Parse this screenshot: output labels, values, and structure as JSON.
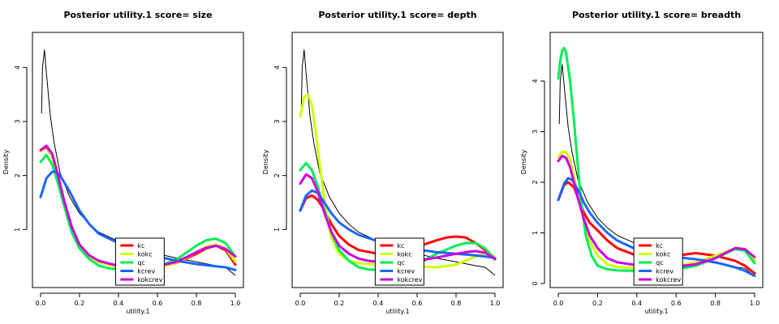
{
  "chart_data": [
    {
      "type": "line",
      "title": "Posterior utility.1  score= size",
      "xlabel": "utility.1",
      "ylabel": "Density",
      "xlim": [
        0,
        1
      ],
      "ylim": [
        0,
        4.5
      ],
      "xticks": [
        "0.0",
        "0.2",
        "0.4",
        "0.6",
        "0.8",
        "1.0"
      ],
      "yticks": [
        "1",
        "2",
        "3",
        "4"
      ],
      "legend_position": "bottom-center",
      "reference": {
        "color": "#000000",
        "x": [
          0.005,
          0.01,
          0.02,
          0.03,
          0.05,
          0.07,
          0.1,
          0.15,
          0.2,
          0.25,
          0.3,
          0.4,
          0.5,
          0.6,
          0.7,
          0.8,
          0.9,
          0.95,
          1.0
        ],
        "y": [
          3.15,
          4.0,
          4.33,
          3.9,
          3.1,
          2.6,
          2.05,
          1.6,
          1.3,
          1.1,
          0.95,
          0.78,
          0.65,
          0.55,
          0.47,
          0.4,
          0.33,
          0.3,
          0.15
        ]
      },
      "series": [
        {
          "name": "kc",
          "color": "#ff0000",
          "x": [
            0,
            0.03,
            0.06,
            0.09,
            0.12,
            0.16,
            0.2,
            0.25,
            0.3,
            0.35,
            0.4,
            0.5,
            0.6,
            0.7,
            0.8,
            0.85,
            0.9,
            0.95,
            1.0
          ],
          "y": [
            2.45,
            2.53,
            2.35,
            1.95,
            1.5,
            1.0,
            0.7,
            0.5,
            0.4,
            0.35,
            0.32,
            0.28,
            0.3,
            0.38,
            0.55,
            0.65,
            0.7,
            0.62,
            0.35
          ]
        },
        {
          "name": "kokc",
          "color": "#ccff00",
          "x": [
            0,
            0.03,
            0.06,
            0.09,
            0.12,
            0.16,
            0.2,
            0.25,
            0.3,
            0.35,
            0.4,
            0.5,
            0.6,
            0.7,
            0.8,
            0.85,
            0.9,
            0.95,
            1.0
          ],
          "y": [
            2.45,
            2.55,
            2.35,
            1.95,
            1.5,
            1.0,
            0.7,
            0.5,
            0.4,
            0.35,
            0.32,
            0.28,
            0.3,
            0.38,
            0.58,
            0.68,
            0.72,
            0.65,
            0.4
          ]
        },
        {
          "name": "qc",
          "color": "#00ee55",
          "x": [
            0,
            0.03,
            0.06,
            0.09,
            0.12,
            0.16,
            0.2,
            0.25,
            0.3,
            0.35,
            0.4,
            0.5,
            0.6,
            0.7,
            0.8,
            0.85,
            0.9,
            0.95,
            1.0
          ],
          "y": [
            2.25,
            2.38,
            2.2,
            1.85,
            1.45,
            0.95,
            0.65,
            0.45,
            0.33,
            0.28,
            0.26,
            0.25,
            0.3,
            0.45,
            0.7,
            0.8,
            0.83,
            0.75,
            0.5
          ]
        },
        {
          "name": "kcrev",
          "color": "#1a66ff",
          "x": [
            0,
            0.03,
            0.06,
            0.08,
            0.1,
            0.15,
            0.2,
            0.25,
            0.3,
            0.4,
            0.5,
            0.6,
            0.7,
            0.8,
            0.9,
            0.95,
            1.0
          ],
          "y": [
            1.6,
            1.95,
            2.07,
            2.07,
            2.0,
            1.7,
            1.35,
            1.1,
            0.92,
            0.75,
            0.62,
            0.5,
            0.42,
            0.36,
            0.32,
            0.3,
            0.25
          ]
        },
        {
          "name": "kokcrev",
          "color": "#cc00dd",
          "x": [
            0,
            0.03,
            0.06,
            0.09,
            0.12,
            0.16,
            0.2,
            0.25,
            0.3,
            0.35,
            0.4,
            0.5,
            0.6,
            0.7,
            0.8,
            0.85,
            0.9,
            0.95,
            1.0
          ],
          "y": [
            2.47,
            2.55,
            2.4,
            2.0,
            1.55,
            1.05,
            0.72,
            0.52,
            0.42,
            0.37,
            0.33,
            0.3,
            0.32,
            0.4,
            0.58,
            0.66,
            0.7,
            0.64,
            0.5
          ]
        }
      ],
      "legend": [
        "kc",
        "kokc",
        "qc",
        "kcrev",
        "kokcrev"
      ]
    },
    {
      "type": "line",
      "title": "Posterior utility.1  score= depth",
      "xlabel": "utility.1",
      "ylabel": "Density",
      "xlim": [
        0,
        1
      ],
      "ylim": [
        0,
        4.5
      ],
      "xticks": [
        "0.0",
        "0.2",
        "0.4",
        "0.6",
        "0.8",
        "1.0"
      ],
      "yticks": [
        "1",
        "2",
        "3",
        "4"
      ],
      "legend_position": "bottom-center",
      "reference": {
        "color": "#000000",
        "x": [
          0.005,
          0.01,
          0.02,
          0.03,
          0.05,
          0.07,
          0.1,
          0.15,
          0.2,
          0.25,
          0.3,
          0.4,
          0.5,
          0.6,
          0.7,
          0.8,
          0.9,
          0.95,
          1.0
        ],
        "y": [
          3.15,
          4.0,
          4.33,
          3.9,
          3.1,
          2.6,
          2.05,
          1.6,
          1.3,
          1.1,
          0.95,
          0.78,
          0.65,
          0.55,
          0.47,
          0.4,
          0.33,
          0.3,
          0.15
        ]
      },
      "series": [
        {
          "name": "kc",
          "color": "#ff0000",
          "x": [
            0,
            0.03,
            0.06,
            0.09,
            0.12,
            0.16,
            0.2,
            0.25,
            0.3,
            0.4,
            0.5,
            0.6,
            0.7,
            0.75,
            0.8,
            0.85,
            0.9,
            0.95,
            1.0
          ],
          "y": [
            1.35,
            1.58,
            1.63,
            1.55,
            1.38,
            1.1,
            0.88,
            0.72,
            0.62,
            0.55,
            0.58,
            0.68,
            0.8,
            0.85,
            0.87,
            0.85,
            0.75,
            0.62,
            0.45
          ]
        },
        {
          "name": "kokc",
          "color": "#ccff00",
          "x": [
            0,
            0.02,
            0.04,
            0.06,
            0.08,
            0.1,
            0.13,
            0.16,
            0.2,
            0.25,
            0.3,
            0.4,
            0.5,
            0.6,
            0.7,
            0.8,
            0.9,
            0.95,
            1.0
          ],
          "y": [
            3.1,
            3.45,
            3.5,
            3.3,
            2.8,
            2.2,
            1.4,
            0.85,
            0.55,
            0.42,
            0.38,
            0.35,
            0.33,
            0.32,
            0.3,
            0.35,
            0.5,
            0.55,
            0.5
          ]
        },
        {
          "name": "qc",
          "color": "#00ee55",
          "x": [
            0,
            0.03,
            0.06,
            0.09,
            0.12,
            0.16,
            0.2,
            0.25,
            0.3,
            0.35,
            0.4,
            0.5,
            0.6,
            0.7,
            0.8,
            0.85,
            0.9,
            0.95,
            1.0
          ],
          "y": [
            2.1,
            2.23,
            2.1,
            1.8,
            1.4,
            0.95,
            0.62,
            0.42,
            0.3,
            0.26,
            0.25,
            0.26,
            0.35,
            0.55,
            0.7,
            0.75,
            0.75,
            0.65,
            0.45
          ]
        },
        {
          "name": "kcrev",
          "color": "#1a66ff",
          "x": [
            0,
            0.03,
            0.06,
            0.09,
            0.12,
            0.16,
            0.2,
            0.25,
            0.3,
            0.4,
            0.5,
            0.6,
            0.7,
            0.8,
            0.9,
            0.95,
            1.0
          ],
          "y": [
            1.35,
            1.63,
            1.72,
            1.68,
            1.52,
            1.3,
            1.13,
            1.0,
            0.9,
            0.78,
            0.7,
            0.63,
            0.58,
            0.55,
            0.52,
            0.5,
            0.47
          ]
        },
        {
          "name": "kokcrev",
          "color": "#cc00dd",
          "x": [
            0,
            0.03,
            0.06,
            0.09,
            0.12,
            0.16,
            0.2,
            0.25,
            0.3,
            0.35,
            0.4,
            0.5,
            0.6,
            0.7,
            0.8,
            0.85,
            0.9,
            0.95,
            1.0
          ],
          "y": [
            1.85,
            2.02,
            1.95,
            1.7,
            1.35,
            0.95,
            0.7,
            0.55,
            0.46,
            0.42,
            0.4,
            0.4,
            0.42,
            0.48,
            0.55,
            0.58,
            0.6,
            0.57,
            0.45
          ]
        }
      ],
      "legend": [
        "kc",
        "kokc",
        "qc",
        "kcrev",
        "kokcrev"
      ]
    },
    {
      "type": "line",
      "title": "Posterior utility.1  score= breadth",
      "xlabel": "utility.1",
      "ylabel": "Density",
      "xlim": [
        0,
        1
      ],
      "ylim": [
        0,
        4.8
      ],
      "xticks": [
        "0.0",
        "0.2",
        "0.4",
        "0.6",
        "0.8",
        "1.0"
      ],
      "yticks": [
        "0",
        "1",
        "2",
        "3",
        "4"
      ],
      "legend_position": "bottom-center",
      "reference": {
        "color": "#000000",
        "x": [
          0.005,
          0.01,
          0.02,
          0.03,
          0.05,
          0.07,
          0.1,
          0.15,
          0.2,
          0.25,
          0.3,
          0.4,
          0.5,
          0.6,
          0.7,
          0.8,
          0.9,
          0.95,
          1.0
        ],
        "y": [
          3.15,
          4.0,
          4.33,
          3.9,
          3.1,
          2.6,
          2.05,
          1.6,
          1.3,
          1.1,
          0.95,
          0.78,
          0.65,
          0.55,
          0.47,
          0.4,
          0.33,
          0.3,
          0.15
        ]
      },
      "series": [
        {
          "name": "kc",
          "color": "#ff0000",
          "x": [
            0,
            0.03,
            0.05,
            0.08,
            0.1,
            0.13,
            0.16,
            0.2,
            0.25,
            0.3,
            0.4,
            0.5,
            0.6,
            0.7,
            0.8,
            0.85,
            0.9,
            0.95,
            1.0
          ],
          "y": [
            1.65,
            1.95,
            2.0,
            1.9,
            1.7,
            1.4,
            1.2,
            1.05,
            0.85,
            0.7,
            0.55,
            0.5,
            0.55,
            0.6,
            0.55,
            0.5,
            0.45,
            0.35,
            0.2
          ]
        },
        {
          "name": "kokc",
          "color": "#ccff00",
          "x": [
            0,
            0.02,
            0.04,
            0.06,
            0.08,
            0.1,
            0.13,
            0.16,
            0.2,
            0.25,
            0.3,
            0.4,
            0.5,
            0.6,
            0.7,
            0.8,
            0.9,
            0.95,
            1.0
          ],
          "y": [
            2.5,
            2.6,
            2.6,
            2.45,
            2.1,
            1.7,
            1.25,
            0.85,
            0.55,
            0.38,
            0.33,
            0.3,
            0.3,
            0.33,
            0.42,
            0.55,
            0.68,
            0.65,
            0.45
          ]
        },
        {
          "name": "qc",
          "color": "#00ee55",
          "x": [
            0,
            0.01,
            0.02,
            0.03,
            0.04,
            0.06,
            0.08,
            0.1,
            0.12,
            0.14,
            0.17,
            0.2,
            0.25,
            0.3,
            0.4,
            0.5,
            0.6,
            0.7,
            0.8,
            0.9,
            0.95,
            1.0
          ],
          "y": [
            4.05,
            4.4,
            4.6,
            4.65,
            4.55,
            4.0,
            3.2,
            2.3,
            1.5,
            0.95,
            0.55,
            0.35,
            0.28,
            0.26,
            0.25,
            0.26,
            0.28,
            0.35,
            0.5,
            0.68,
            0.65,
            0.4
          ]
        },
        {
          "name": "kcrev",
          "color": "#1a66ff",
          "x": [
            0,
            0.03,
            0.05,
            0.07,
            0.1,
            0.13,
            0.16,
            0.2,
            0.25,
            0.3,
            0.4,
            0.5,
            0.6,
            0.7,
            0.8,
            0.9,
            0.95,
            1.0
          ],
          "y": [
            1.65,
            1.98,
            2.08,
            2.05,
            1.85,
            1.6,
            1.4,
            1.2,
            1.0,
            0.85,
            0.67,
            0.58,
            0.52,
            0.48,
            0.42,
            0.32,
            0.25,
            0.15
          ]
        },
        {
          "name": "kokcrev",
          "color": "#cc00dd",
          "x": [
            0,
            0.02,
            0.04,
            0.06,
            0.08,
            0.1,
            0.13,
            0.16,
            0.2,
            0.25,
            0.3,
            0.4,
            0.5,
            0.6,
            0.7,
            0.8,
            0.85,
            0.9,
            0.95,
            1.0
          ],
          "y": [
            2.42,
            2.52,
            2.48,
            2.3,
            2.0,
            1.68,
            1.28,
            0.95,
            0.7,
            0.5,
            0.42,
            0.36,
            0.33,
            0.33,
            0.38,
            0.5,
            0.6,
            0.7,
            0.68,
            0.52
          ]
        }
      ],
      "legend": [
        "kc",
        "kokc",
        "qc",
        "kcrev",
        "kokcrev"
      ]
    }
  ]
}
